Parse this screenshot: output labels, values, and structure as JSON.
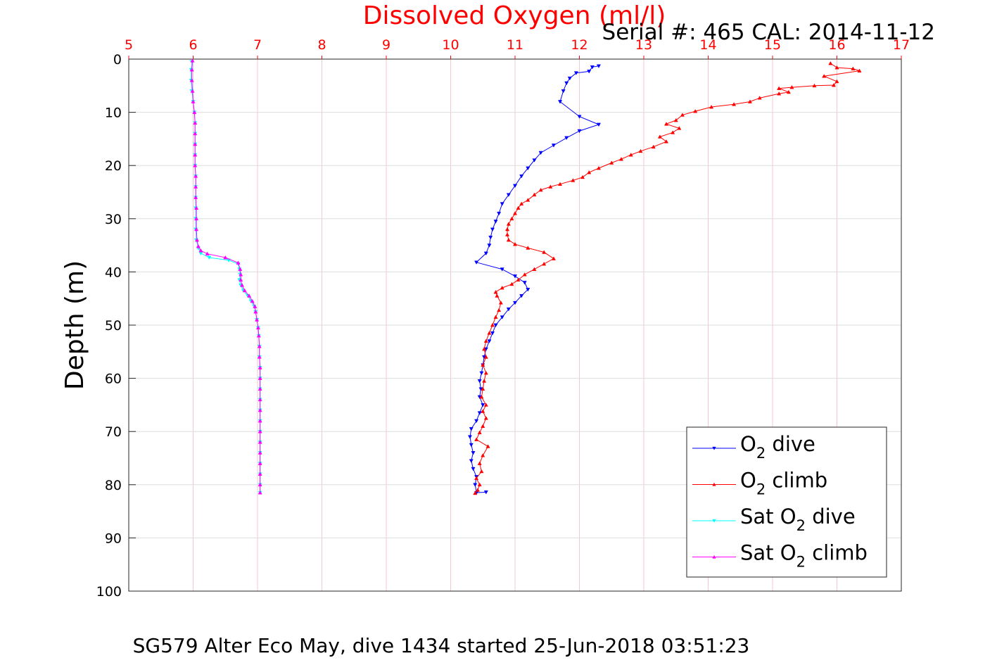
{
  "chart_data": {
    "type": "line",
    "title": "Dissolved Oxygen (ml/l)",
    "subtitle": "Serial #: 465  CAL: 2014-11-12",
    "footer": "SG579 Alter Eco May, dive 1434 started 25-Jun-2018 03:51:23",
    "ylabel": "Depth (m)",
    "xlabel": "",
    "x_axis_position": "top",
    "xlim": [
      5,
      17
    ],
    "ylim": [
      0,
      100
    ],
    "y_reversed": true,
    "grid": true,
    "x_ticks": [
      "5",
      "6",
      "7",
      "8",
      "9",
      "10",
      "11",
      "12",
      "13",
      "14",
      "15",
      "16",
      "17"
    ],
    "y_ticks": [
      "0",
      "10",
      "20",
      "30",
      "40",
      "50",
      "60",
      "70",
      "80",
      "90",
      "100"
    ],
    "legend_position": "bottom-right",
    "colors": {
      "title": "#ff0000",
      "x_ticks": "#ff0000",
      "gridline": "#dddddd",
      "x_gridline": "#f4c8cc"
    },
    "series": [
      {
        "name": "O2 dive",
        "legend_main": "O",
        "legend_sub": "2",
        "legend_suffix": " dive",
        "color": "#0000ff",
        "marker": "triangle-down",
        "points": [
          [
            12.3,
            1.3
          ],
          [
            12.2,
            1.5
          ],
          [
            12.15,
            2.3
          ],
          [
            11.95,
            2.6
          ],
          [
            11.85,
            3.6
          ],
          [
            11.8,
            4.5
          ],
          [
            11.75,
            6.0
          ],
          [
            11.7,
            8.0
          ],
          [
            12.0,
            10.8
          ],
          [
            12.3,
            12.3
          ],
          [
            12.0,
            13.5
          ],
          [
            11.8,
            14.8
          ],
          [
            11.6,
            16.2
          ],
          [
            11.4,
            17.6
          ],
          [
            11.3,
            19.0
          ],
          [
            11.2,
            20.5
          ],
          [
            11.1,
            22.0
          ],
          [
            11.0,
            23.8
          ],
          [
            10.9,
            25.5
          ],
          [
            10.8,
            27.2
          ],
          [
            10.75,
            29.0
          ],
          [
            10.7,
            30.5
          ],
          [
            10.65,
            32.0
          ],
          [
            10.62,
            33.5
          ],
          [
            10.6,
            35.0
          ],
          [
            10.55,
            36.5
          ],
          [
            10.4,
            38.2
          ],
          [
            10.8,
            39.5
          ],
          [
            11.0,
            40.8
          ],
          [
            11.15,
            42.0
          ],
          [
            11.2,
            43.3
          ],
          [
            11.1,
            44.5
          ],
          [
            11.0,
            45.8
          ],
          [
            10.9,
            47.0
          ],
          [
            10.8,
            48.5
          ],
          [
            10.7,
            50.0
          ],
          [
            10.65,
            51.5
          ],
          [
            10.6,
            53.0
          ],
          [
            10.55,
            54.5
          ],
          [
            10.52,
            56.0
          ],
          [
            10.5,
            57.5
          ],
          [
            10.48,
            59.0
          ],
          [
            10.45,
            60.5
          ],
          [
            10.47,
            62.0
          ],
          [
            10.45,
            63.5
          ],
          [
            10.5,
            65.0
          ],
          [
            10.45,
            66.5
          ],
          [
            10.4,
            68.0
          ],
          [
            10.32,
            69.5
          ],
          [
            10.3,
            71.0
          ],
          [
            10.32,
            72.5
          ],
          [
            10.35,
            74.0
          ],
          [
            10.32,
            75.5
          ],
          [
            10.35,
            77.0
          ],
          [
            10.4,
            78.5
          ],
          [
            10.38,
            80.0
          ],
          [
            10.4,
            81.5
          ],
          [
            10.55,
            81.4
          ]
        ]
      },
      {
        "name": "O2 climb",
        "legend_main": "O",
        "legend_sub": "2",
        "legend_suffix": " climb",
        "color": "#ff0000",
        "marker": "triangle-up",
        "points": [
          [
            10.38,
            81.6
          ],
          [
            10.42,
            81.0
          ],
          [
            10.45,
            80.0
          ],
          [
            10.4,
            78.8
          ],
          [
            10.48,
            77.5
          ],
          [
            10.45,
            76.0
          ],
          [
            10.5,
            74.5
          ],
          [
            10.58,
            72.8
          ],
          [
            10.4,
            71.5
          ],
          [
            10.45,
            70.2
          ],
          [
            10.5,
            69.0
          ],
          [
            10.55,
            67.5
          ],
          [
            10.5,
            66.2
          ],
          [
            10.55,
            65.0
          ],
          [
            10.48,
            63.5
          ],
          [
            10.5,
            62.0
          ],
          [
            10.52,
            60.5
          ],
          [
            10.55,
            59.0
          ],
          [
            10.5,
            57.5
          ],
          [
            10.55,
            56.0
          ],
          [
            10.52,
            54.5
          ],
          [
            10.55,
            53.0
          ],
          [
            10.6,
            51.5
          ],
          [
            10.65,
            50.0
          ],
          [
            10.7,
            48.5
          ],
          [
            10.75,
            47.2
          ],
          [
            10.78,
            45.8
          ],
          [
            10.72,
            44.5
          ],
          [
            10.7,
            43.8
          ],
          [
            10.8,
            43.0
          ],
          [
            10.95,
            42.3
          ],
          [
            11.05,
            41.5
          ],
          [
            11.15,
            40.5
          ],
          [
            11.3,
            39.5
          ],
          [
            11.45,
            38.5
          ],
          [
            11.6,
            37.5
          ],
          [
            11.45,
            36.3
          ],
          [
            11.2,
            35.5
          ],
          [
            11.0,
            34.8
          ],
          [
            10.9,
            34.0
          ],
          [
            10.88,
            33.0
          ],
          [
            10.88,
            32.0
          ],
          [
            10.9,
            31.0
          ],
          [
            10.95,
            30.0
          ],
          [
            11.0,
            29.0
          ],
          [
            11.05,
            28.0
          ],
          [
            11.1,
            27.2
          ],
          [
            11.2,
            26.5
          ],
          [
            11.3,
            25.5
          ],
          [
            11.4,
            24.6
          ],
          [
            11.55,
            24.0
          ],
          [
            11.7,
            23.5
          ],
          [
            11.9,
            22.8
          ],
          [
            12.05,
            22.2
          ],
          [
            12.15,
            21.3
          ],
          [
            12.3,
            20.5
          ],
          [
            12.5,
            19.5
          ],
          [
            12.65,
            18.8
          ],
          [
            12.8,
            18.0
          ],
          [
            12.95,
            17.3
          ],
          [
            13.15,
            16.5
          ],
          [
            13.35,
            15.5
          ],
          [
            13.25,
            14.6
          ],
          [
            13.45,
            13.8
          ],
          [
            13.55,
            13.0
          ],
          [
            13.35,
            12.2
          ],
          [
            13.5,
            11.5
          ],
          [
            13.6,
            10.5
          ],
          [
            13.8,
            9.8
          ],
          [
            14.05,
            9.0
          ],
          [
            14.4,
            8.5
          ],
          [
            14.65,
            8.0
          ],
          [
            14.8,
            7.3
          ],
          [
            15.1,
            6.5
          ],
          [
            15.25,
            6.2
          ],
          [
            15.1,
            5.5
          ],
          [
            15.3,
            5.3
          ],
          [
            15.65,
            5.0
          ],
          [
            15.95,
            4.9
          ],
          [
            16.0,
            4.2
          ],
          [
            15.8,
            3.2
          ],
          [
            16.35,
            2.2
          ],
          [
            16.25,
            1.8
          ],
          [
            16.0,
            1.6
          ],
          [
            15.9,
            0.8
          ]
        ]
      },
      {
        "name": "Sat O2 dive",
        "legend_main": "Sat O",
        "legend_sub": "2",
        "legend_suffix": " dive",
        "color": "#00ffff",
        "marker": "triangle-down",
        "points": [
          [
            5.98,
            0.5
          ],
          [
            5.97,
            2.0
          ],
          [
            5.97,
            4.0
          ],
          [
            5.98,
            6.0
          ],
          [
            6.0,
            8.0
          ],
          [
            6.02,
            10.0
          ],
          [
            6.03,
            12.0
          ],
          [
            6.03,
            14.0
          ],
          [
            6.03,
            16.0
          ],
          [
            6.03,
            18.0
          ],
          [
            6.03,
            20.0
          ],
          [
            6.04,
            22.0
          ],
          [
            6.04,
            24.0
          ],
          [
            6.04,
            26.0
          ],
          [
            6.04,
            28.0
          ],
          [
            6.04,
            30.0
          ],
          [
            6.04,
            32.0
          ],
          [
            6.05,
            34.0
          ],
          [
            6.08,
            35.5
          ],
          [
            6.12,
            36.5
          ],
          [
            6.25,
            37.3
          ],
          [
            6.55,
            37.8
          ],
          [
            6.7,
            38.5
          ],
          [
            6.72,
            39.5
          ],
          [
            6.73,
            40.5
          ],
          [
            6.72,
            41.5
          ],
          [
            6.74,
            42.5
          ],
          [
            6.78,
            43.5
          ],
          [
            6.85,
            44.5
          ],
          [
            6.9,
            45.5
          ],
          [
            6.95,
            46.5
          ],
          [
            6.97,
            47.5
          ],
          [
            6.99,
            49.0
          ],
          [
            7.01,
            50.5
          ],
          [
            7.02,
            52.0
          ],
          [
            7.03,
            54.0
          ],
          [
            7.03,
            56.0
          ],
          [
            7.04,
            58.0
          ],
          [
            7.04,
            60.0
          ],
          [
            7.04,
            62.0
          ],
          [
            7.04,
            64.0
          ],
          [
            7.04,
            66.0
          ],
          [
            7.04,
            68.0
          ],
          [
            7.04,
            70.0
          ],
          [
            7.04,
            72.0
          ],
          [
            7.04,
            74.0
          ],
          [
            7.04,
            76.0
          ],
          [
            7.04,
            78.0
          ],
          [
            7.04,
            80.0
          ],
          [
            7.04,
            81.5
          ]
        ]
      },
      {
        "name": "Sat O2 climb",
        "legend_main": "Sat O",
        "legend_sub": "2",
        "legend_suffix": " climb",
        "color": "#ff00ff",
        "marker": "triangle-up",
        "points": [
          [
            7.04,
            81.5
          ],
          [
            7.04,
            80.0
          ],
          [
            7.04,
            78.0
          ],
          [
            7.04,
            76.0
          ],
          [
            7.04,
            74.0
          ],
          [
            7.04,
            72.0
          ],
          [
            7.04,
            70.0
          ],
          [
            7.04,
            68.0
          ],
          [
            7.04,
            66.0
          ],
          [
            7.04,
            64.0
          ],
          [
            7.04,
            62.0
          ],
          [
            7.04,
            60.0
          ],
          [
            7.04,
            58.0
          ],
          [
            7.03,
            56.0
          ],
          [
            7.03,
            54.0
          ],
          [
            7.02,
            52.0
          ],
          [
            7.01,
            50.5
          ],
          [
            6.99,
            49.0
          ],
          [
            6.97,
            47.5
          ],
          [
            6.96,
            46.5
          ],
          [
            6.92,
            45.5
          ],
          [
            6.87,
            44.5
          ],
          [
            6.8,
            43.5
          ],
          [
            6.76,
            42.5
          ],
          [
            6.74,
            41.5
          ],
          [
            6.74,
            40.5
          ],
          [
            6.73,
            39.5
          ],
          [
            6.7,
            38.3
          ],
          [
            6.5,
            37.3
          ],
          [
            6.22,
            36.6
          ],
          [
            6.12,
            36.0
          ],
          [
            6.08,
            35.2
          ],
          [
            6.06,
            34.0
          ],
          [
            6.05,
            32.0
          ],
          [
            6.05,
            30.0
          ],
          [
            6.05,
            28.0
          ],
          [
            6.04,
            26.0
          ],
          [
            6.04,
            24.0
          ],
          [
            6.04,
            22.0
          ],
          [
            6.03,
            20.0
          ],
          [
            6.03,
            18.0
          ],
          [
            6.03,
            16.0
          ],
          [
            6.03,
            14.0
          ],
          [
            6.03,
            12.0
          ],
          [
            6.02,
            10.0
          ],
          [
            6.0,
            8.0
          ],
          [
            5.99,
            6.0
          ],
          [
            5.98,
            4.0
          ],
          [
            5.98,
            2.0
          ],
          [
            5.99,
            0.3
          ]
        ]
      }
    ]
  }
}
